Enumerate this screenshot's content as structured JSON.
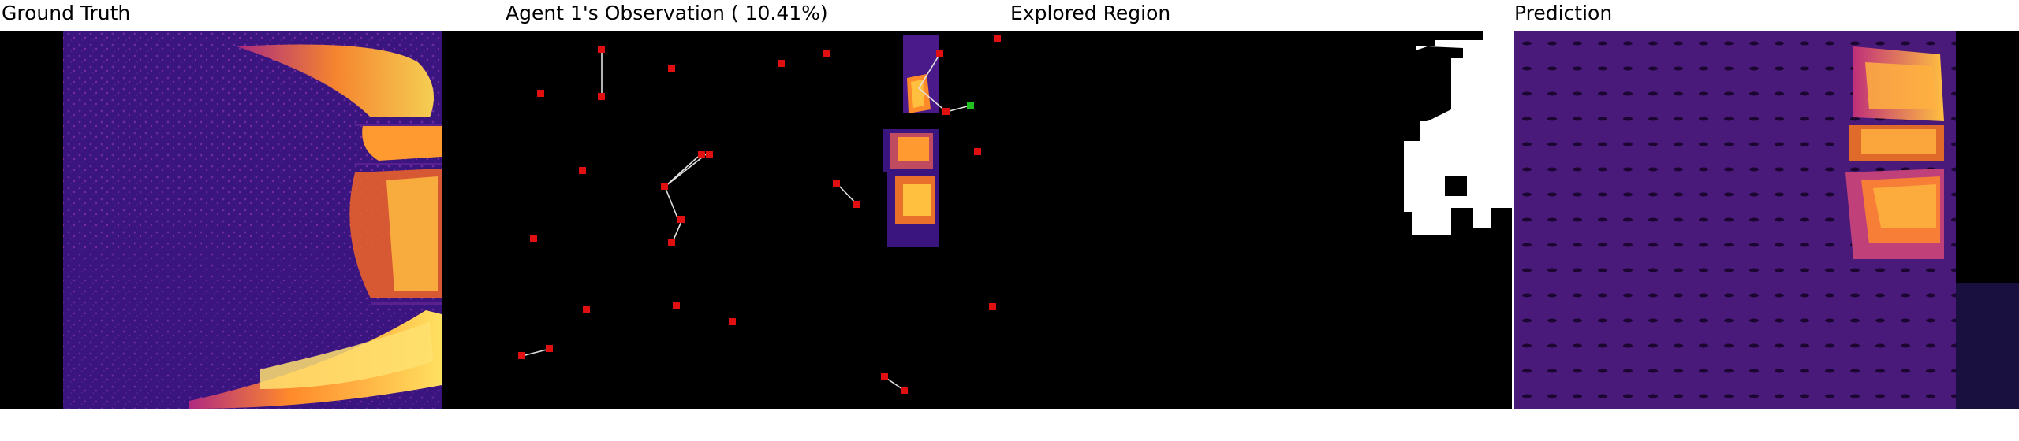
{
  "panels": [
    {
      "title": "Ground Truth"
    },
    {
      "title": "Agent 1's Observation ( 10.41%)"
    },
    {
      "title": "Explored Region"
    },
    {
      "title": "Prediction"
    }
  ],
  "colors": {
    "background": "#000000",
    "heat_low": "#2a0a5e",
    "heat_mid": "#c0307a",
    "heat_high": "#ffd040",
    "agent_marker": "#e01010",
    "current_agent_marker": "#20c020",
    "explored": "#ffffff"
  }
}
